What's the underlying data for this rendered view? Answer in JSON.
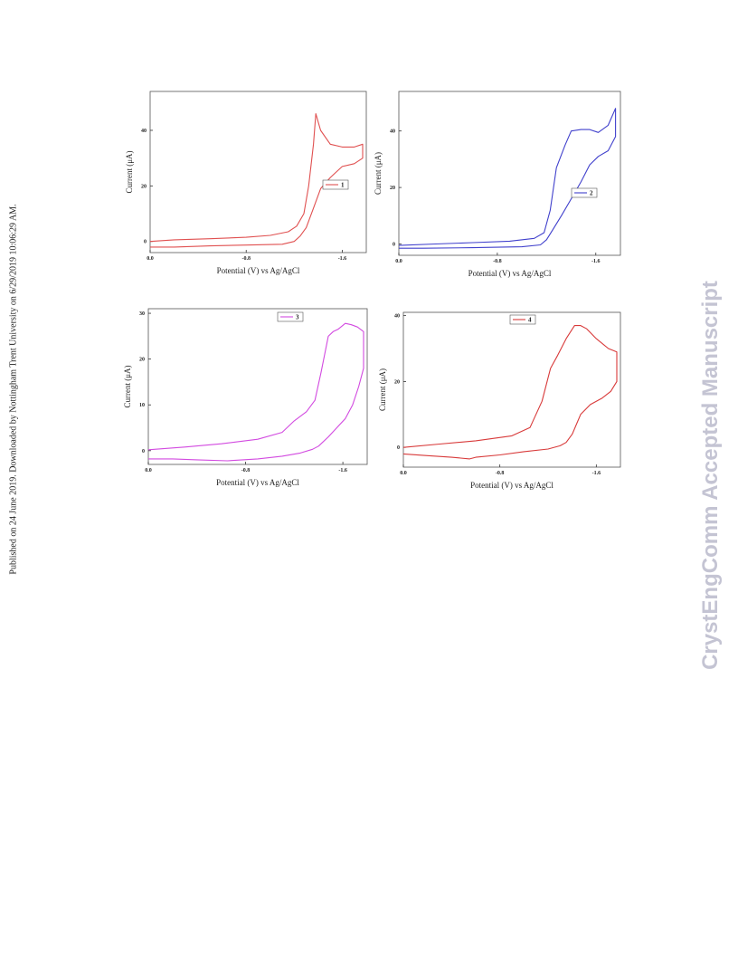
{
  "side_note": "Published on 24 June 2019. Downloaded by Nottingham Trent University on 6/29/2019 10:06:29 AM.",
  "watermark": "CrystEngComm Accepted Manuscript",
  "chart_data": [
    {
      "type": "line",
      "panel": "1",
      "color": "#e05050",
      "xlabel": "Potential (V) vs Ag/AgCl",
      "ylabel": "Current (μA)",
      "xlim": [
        0.0,
        -1.8
      ],
      "ylim": [
        -4,
        54
      ],
      "xticks": [
        {
          "v": 0.0,
          "label": "0.0"
        },
        {
          "v": -0.8,
          "label": "-0.8"
        },
        {
          "v": -1.6,
          "label": "-1.6"
        }
      ],
      "yticks": [
        {
          "v": 0,
          "label": "0"
        },
        {
          "v": 20,
          "label": "20"
        },
        {
          "v": 40,
          "label": "40"
        }
      ],
      "legend": {
        "label": "1",
        "position": "center-right"
      },
      "series": [
        {
          "name": "1",
          "x": [
            0.0,
            -0.2,
            -0.5,
            -0.8,
            -1.0,
            -1.15,
            -1.22,
            -1.28,
            -1.32,
            -1.36,
            -1.38,
            -1.42,
            -1.5,
            -1.6,
            -1.7,
            -1.77,
            -1.77,
            -1.7,
            -1.6,
            -1.5,
            -1.42,
            -1.36,
            -1.3,
            -1.25,
            -1.2,
            -1.1,
            -0.8,
            -0.5,
            -0.2,
            0.0
          ],
          "y": [
            0.0,
            0.6,
            1.0,
            1.5,
            2.2,
            3.5,
            5.5,
            10,
            20,
            35,
            46,
            40,
            35,
            34.0,
            34.0,
            35,
            30,
            28,
            27,
            23,
            19,
            12,
            5,
            2,
            0,
            -1,
            -1.3,
            -1.6,
            -2.0,
            -2.0
          ]
        }
      ]
    },
    {
      "type": "line",
      "panel": "2",
      "color": "#4040cc",
      "xlabel": "Potential (V) vs Ag/AgCl",
      "ylabel": "Current (μA)",
      "xlim": [
        0.0,
        -1.8
      ],
      "ylim": [
        -4,
        54
      ],
      "xticks": [
        {
          "v": 0.0,
          "label": "0.0"
        },
        {
          "v": -0.8,
          "label": "-0.8"
        },
        {
          "v": -1.6,
          "label": "-1.6"
        }
      ],
      "yticks": [
        {
          "v": 0,
          "label": "0"
        },
        {
          "v": 20,
          "label": "20"
        },
        {
          "v": 40,
          "label": "40"
        }
      ],
      "legend": {
        "label": "2",
        "position": "center-right"
      },
      "series": [
        {
          "name": "2",
          "x": [
            0.0,
            -0.3,
            -0.6,
            -0.9,
            -1.1,
            -1.18,
            -1.23,
            -1.28,
            -1.35,
            -1.4,
            -1.48,
            -1.55,
            -1.62,
            -1.7,
            -1.76,
            -1.76,
            -1.7,
            -1.62,
            -1.55,
            -1.48,
            -1.4,
            -1.32,
            -1.25,
            -1.2,
            -1.15,
            -1.0,
            -0.6,
            -0.2,
            0.0
          ],
          "y": [
            -0.5,
            0.0,
            0.5,
            1.0,
            2.0,
            4.0,
            12,
            27,
            35,
            40,
            40.5,
            40.5,
            39.5,
            42,
            48,
            38,
            33,
            31,
            28,
            22,
            16,
            10,
            5,
            1.5,
            -0.3,
            -1.0,
            -1.3,
            -1.5,
            -1.5
          ]
        }
      ]
    },
    {
      "type": "line",
      "panel": "3",
      "color": "#d24ae0",
      "xlabel": "Potential (V) vs Ag/AgCl",
      "ylabel": "Current (μA)",
      "xlim": [
        0.0,
        -1.8
      ],
      "ylim": [
        -3,
        31
      ],
      "xticks": [
        {
          "v": 0.0,
          "label": "0.0"
        },
        {
          "v": -0.8,
          "label": "-0.8"
        },
        {
          "v": -1.6,
          "label": "-1.6"
        }
      ],
      "yticks": [
        {
          "v": 0,
          "label": "0"
        },
        {
          "v": 10,
          "label": "10"
        },
        {
          "v": 20,
          "label": "20"
        },
        {
          "v": 30,
          "label": "30"
        }
      ],
      "legend": {
        "label": "3",
        "position": "top-right"
      },
      "series": [
        {
          "name": "3",
          "x": [
            0.0,
            -0.3,
            -0.6,
            -0.9,
            -1.1,
            -1.2,
            -1.3,
            -1.37,
            -1.42,
            -1.48,
            -1.52,
            -1.56,
            -1.62,
            -1.67,
            -1.72,
            -1.77,
            -1.77,
            -1.73,
            -1.68,
            -1.62,
            -1.55,
            -1.48,
            -1.4,
            -1.35,
            -1.25,
            -1.1,
            -0.9,
            -0.65,
            -0.4,
            -0.2,
            0.0
          ],
          "y": [
            0.2,
            0.8,
            1.5,
            2.5,
            4.0,
            6.5,
            8.5,
            11,
            17,
            25,
            26,
            26.5,
            27.8,
            27.5,
            27,
            26,
            18,
            14,
            10,
            7,
            5,
            3,
            1,
            0.3,
            -0.5,
            -1.2,
            -1.8,
            -2.2,
            -2.0,
            -1.8,
            -1.8
          ]
        }
      ]
    },
    {
      "type": "line",
      "panel": "4",
      "color": "#d83a3a",
      "xlabel": "Potential (V) vs Ag/AgCl",
      "ylabel": "Current (μA)",
      "xlim": [
        0.0,
        -1.8
      ],
      "ylim": [
        -6,
        41
      ],
      "xticks": [
        {
          "v": 0.0,
          "label": "0.0"
        },
        {
          "v": -0.8,
          "label": "-0.8"
        },
        {
          "v": -1.6,
          "label": "-1.6"
        }
      ],
      "yticks": [
        {
          "v": 0,
          "label": "0"
        },
        {
          "v": 20,
          "label": "20"
        },
        {
          "v": 40,
          "label": "40"
        }
      ],
      "legend": {
        "label": "4",
        "position": "top-center"
      },
      "series": [
        {
          "name": "4",
          "x": [
            0.0,
            -0.3,
            -0.6,
            -0.9,
            -1.05,
            -1.15,
            -1.22,
            -1.28,
            -1.35,
            -1.42,
            -1.47,
            -1.52,
            -1.6,
            -1.7,
            -1.77,
            -1.77,
            -1.72,
            -1.65,
            -1.55,
            -1.47,
            -1.4,
            -1.35,
            -1.3,
            -1.2,
            -1.0,
            -0.8,
            -0.6,
            -0.55,
            -0.4,
            -0.2,
            0.0
          ],
          "y": [
            0.0,
            1.0,
            2.0,
            3.5,
            6,
            14,
            24,
            28,
            33,
            37,
            37,
            36,
            33,
            30,
            29,
            20,
            17,
            15,
            13,
            10,
            4,
            1.5,
            0.5,
            -0.5,
            -1.3,
            -2.3,
            -3.0,
            -3.5,
            -3.0,
            -2.5,
            -2.0
          ]
        }
      ]
    }
  ]
}
